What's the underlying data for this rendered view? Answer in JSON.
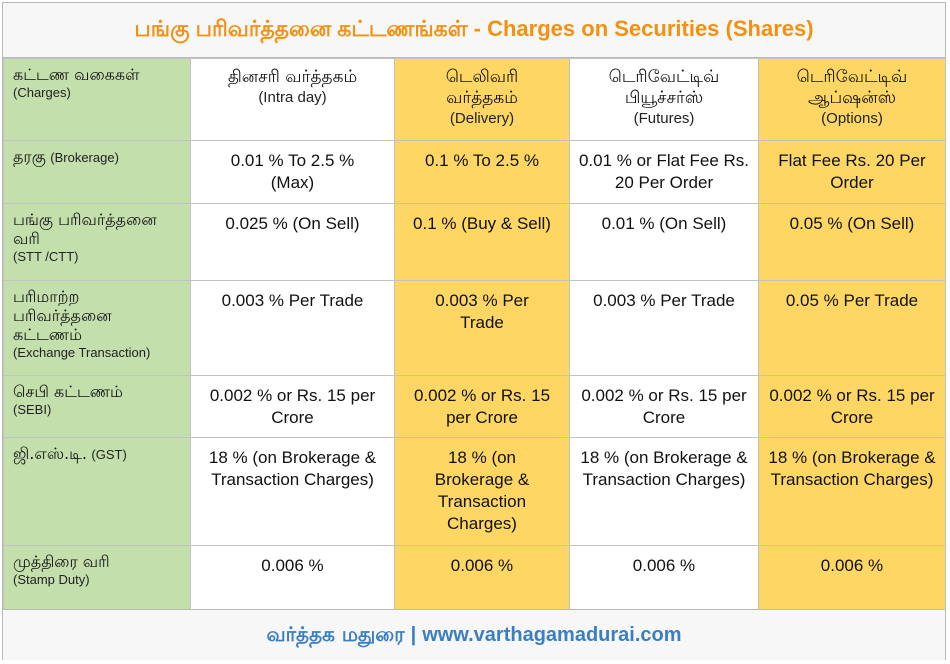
{
  "title": "பங்கு பரிவர்த்தனை கட்டணங்கள் - Charges on Securities (Shares)",
  "header": {
    "label": {
      "ta": "கட்டண வகைகள்",
      "en": "(Charges)"
    },
    "columns": [
      {
        "ta": "தினசரி வர்த்தகம்",
        "en": "(Intra day)"
      },
      {
        "ta": "டெலிவரி வர்த்தகம்",
        "en": "(Delivery)"
      },
      {
        "ta": "டெரிவேட்டிவ் பியூச்சர்ஸ்",
        "en": "(Futures)"
      },
      {
        "ta": "டெரிவேட்டிவ் ஆப்ஷன்ஸ்",
        "en": "(Options)"
      }
    ]
  },
  "rows": [
    {
      "ta": "தரகு",
      "en": "(Brokerage)",
      "values": [
        "0.01 % To 2.5 % (Max)",
        "0.1 % To 2.5 %",
        "0.01 % or Flat Fee Rs. 20 Per Order",
        "Flat Fee Rs. 20 Per Order"
      ]
    },
    {
      "ta": "பங்கு பரிவர்த்தனை வரி",
      "en": "(STT /CTT)",
      "values": [
        "0.025 % (On Sell)",
        "0.1 % (Buy & Sell)",
        "0.01 % (On Sell)",
        "0.05 % (On Sell)"
      ]
    },
    {
      "ta": "பரிமாற்ற பரிவர்த்தனை கட்டணம்",
      "en": "(Exchange Transaction)",
      "values": [
        "0.003 % Per Trade",
        "0.003 % Per Trade",
        "0.003 % Per Trade",
        "0.05 % Per Trade"
      ]
    },
    {
      "ta": "செபி கட்டணம்",
      "en": "(SEBI)",
      "values": [
        "0.002 % or Rs. 15 per Crore",
        "0.002 % or Rs. 15 per Crore",
        "0.002 % or Rs. 15 per Crore",
        "0.002 % or Rs. 15 per Crore"
      ]
    },
    {
      "ta": "ஜி.எஸ்.டி.",
      "en": "(GST)",
      "values": [
        "18 % (on Brokerage & Transaction Charges)",
        "18 % (on Brokerage & Transaction Charges)",
        "18 % (on Brokerage & Transaction Charges)",
        "18 % (on Brokerage & Transaction Charges)"
      ]
    },
    {
      "ta": "முத்திரை வரி",
      "en": "(Stamp Duty)",
      "values": [
        "0.006 %",
        "0.006 %",
        "0.006 %",
        "0.006 %"
      ]
    }
  ],
  "footer": {
    "brand": "வர்த்தக மதுரை",
    "separator": "|",
    "website": "www.varthagamadurai.com"
  },
  "colors": {
    "title": "#f29111",
    "label_bg": "#c2dfac",
    "highlight_bg": "#fdd663",
    "footer_text": "#3a7fc4"
  }
}
